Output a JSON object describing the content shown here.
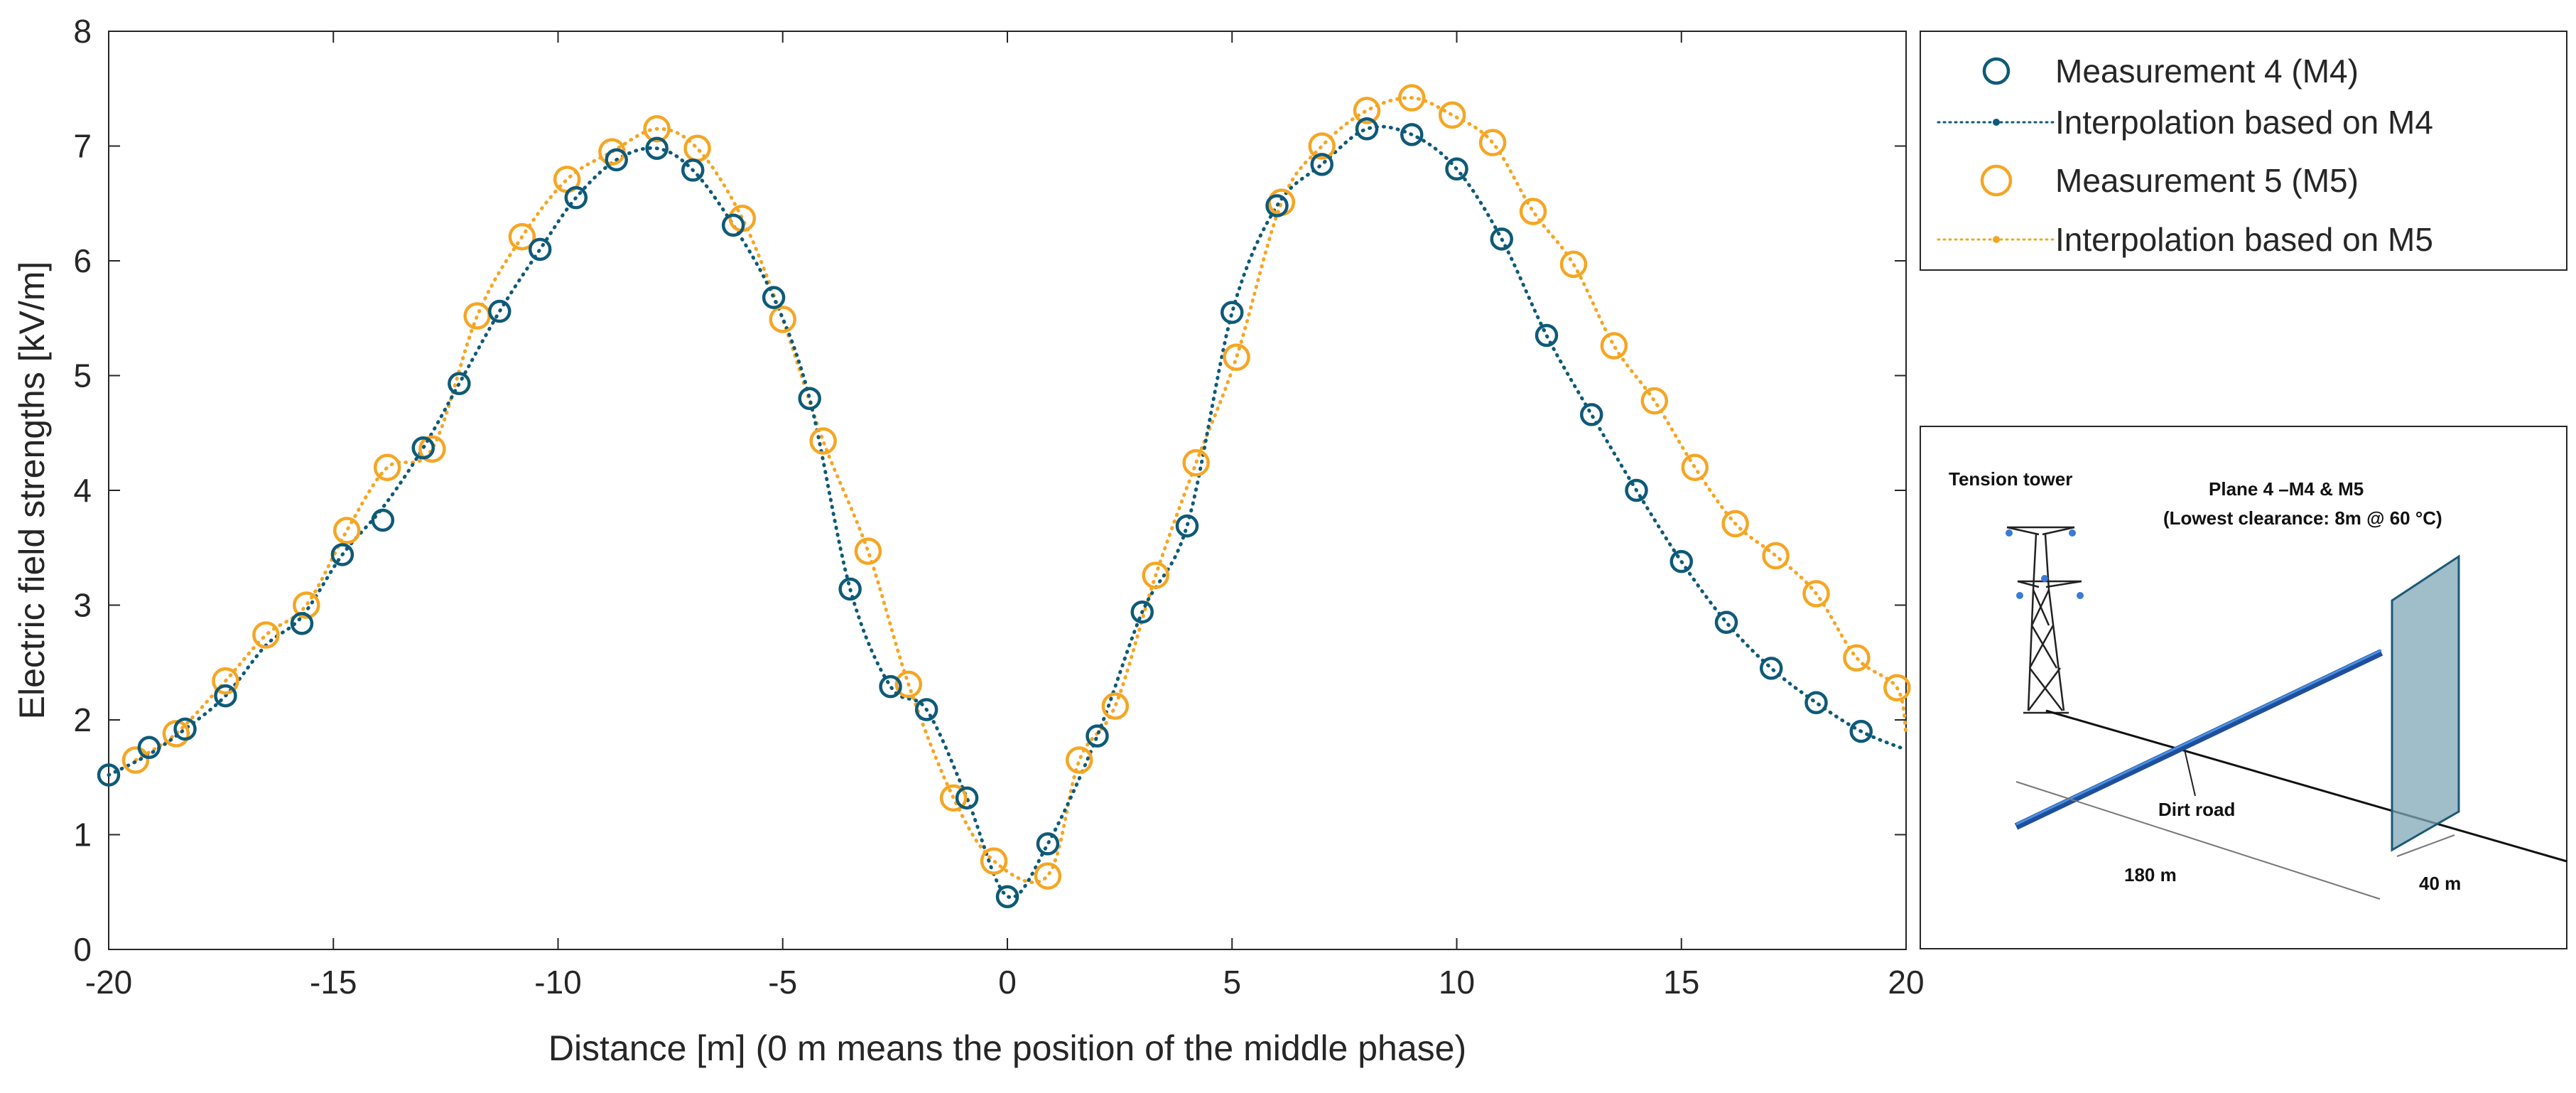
{
  "chart_data": {
    "type": "line",
    "xlabel": "Distance [m] (0 m means the position of the middle phase)",
    "ylabel": "Electric field strengths [kV/m]",
    "xlim": [
      -20,
      20
    ],
    "ylim": [
      0,
      8
    ],
    "xticks": [
      "-20",
      "-15",
      "-10",
      "-5",
      "0",
      "5",
      "10",
      "15",
      "20"
    ],
    "yticks": [
      "0",
      "1",
      "2",
      "3",
      "4",
      "5",
      "6",
      "7",
      "8"
    ],
    "colors": {
      "m4": "#0e5a78",
      "m5": "#f5a623"
    },
    "series": [
      {
        "name": "Measurement 4 (M4)",
        "kind": "markers",
        "color": "#0e5a78",
        "x": [
          -20,
          -19.1,
          -18.3,
          -17.4,
          -15.7,
          -14.8,
          -13.9,
          -13.0,
          -12.2,
          -11.3,
          -10.4,
          -9.6,
          -8.7,
          -7.8,
          -7.0,
          -6.1,
          -5.2,
          -4.4,
          -3.5,
          -2.6,
          -1.8,
          -0.9,
          0,
          0.9,
          2.0,
          3.0,
          4.0,
          5.0,
          6.0,
          7.0,
          8.0,
          9.0,
          10.0,
          11.0,
          12.0,
          13.0,
          14.0,
          15.0,
          16.0,
          17.0,
          18.0,
          19.0
        ],
        "y": [
          1.52,
          1.76,
          1.92,
          2.21,
          2.84,
          3.44,
          3.74,
          4.37,
          4.93,
          5.56,
          6.1,
          6.55,
          6.88,
          6.98,
          6.79,
          6.31,
          5.68,
          4.8,
          3.14,
          2.29,
          2.09,
          1.32,
          0.46,
          0.92,
          1.86,
          2.94,
          3.69,
          5.55,
          6.48,
          6.84,
          7.15,
          7.1,
          6.8,
          6.19,
          5.35,
          4.66,
          4.0,
          3.38,
          2.85,
          2.45,
          2.15,
          1.9
        ]
      },
      {
        "name": "Interpolation based on M4",
        "kind": "dotted-line",
        "color": "#0e5a78",
        "x": [
          -20,
          -19.1,
          -18.3,
          -17.4,
          -16.5,
          -15.7,
          -14.8,
          -13.9,
          -13.0,
          -12.2,
          -11.3,
          -10.4,
          -9.6,
          -8.7,
          -7.8,
          -7.0,
          -6.1,
          -5.2,
          -4.4,
          -3.5,
          -2.6,
          -1.8,
          -0.9,
          0,
          0.9,
          2.0,
          3.0,
          4.0,
          5.0,
          6.0,
          7.0,
          8.0,
          9.0,
          10.0,
          11.0,
          12.0,
          13.0,
          14.0,
          15.0,
          16.0,
          17.0,
          18.0,
          19.0,
          20.0
        ],
        "y": [
          1.52,
          1.7,
          1.92,
          2.21,
          2.65,
          2.9,
          3.44,
          3.85,
          4.37,
          4.93,
          5.56,
          6.1,
          6.55,
          6.88,
          6.98,
          6.79,
          6.31,
          5.68,
          4.8,
          3.14,
          2.29,
          2.09,
          1.32,
          0.46,
          0.92,
          1.86,
          2.94,
          3.69,
          5.55,
          6.48,
          6.84,
          7.15,
          7.1,
          6.8,
          6.19,
          5.35,
          4.66,
          4.0,
          3.38,
          2.85,
          2.45,
          2.15,
          1.9,
          1.74
        ]
      },
      {
        "name": "Measurement 5 (M5)",
        "kind": "markers",
        "color": "#f5a623",
        "x": [
          -19.4,
          -18.5,
          -17.4,
          -16.5,
          -15.6,
          -14.7,
          -13.8,
          -12.8,
          -11.8,
          -10.8,
          -9.8,
          -8.8,
          -7.8,
          -6.9,
          -5.9,
          -5.0,
          -4.1,
          -3.1,
          -2.2,
          -1.2,
          -0.3,
          0.9,
          1.6,
          2.4,
          3.3,
          4.2,
          5.1,
          6.1,
          7.0,
          8.0,
          9.0,
          9.9,
          10.8,
          11.7,
          12.6,
          13.5,
          14.4,
          15.3,
          16.2,
          17.1,
          18.0,
          18.9,
          19.8
        ],
        "y": [
          1.65,
          1.88,
          2.34,
          2.74,
          3.0,
          3.65,
          4.2,
          4.36,
          5.52,
          6.21,
          6.71,
          6.95,
          7.15,
          6.98,
          6.37,
          5.49,
          4.43,
          3.47,
          2.31,
          1.32,
          0.77,
          0.64,
          1.65,
          2.12,
          3.26,
          4.24,
          5.16,
          6.51,
          7.0,
          7.31,
          7.42,
          7.27,
          7.03,
          6.43,
          5.97,
          5.26,
          4.78,
          4.2,
          3.71,
          3.43,
          3.1,
          2.54,
          2.28
        ]
      },
      {
        "name": "Interpolation based on M5",
        "kind": "dotted-line",
        "color": "#f5a623",
        "x": [
          -19.4,
          -18.5,
          -17.4,
          -16.5,
          -15.6,
          -14.7,
          -13.8,
          -12.8,
          -11.8,
          -10.8,
          -9.8,
          -8.8,
          -7.8,
          -6.9,
          -5.9,
          -5.0,
          -4.1,
          -3.1,
          -2.2,
          -1.2,
          -0.3,
          0.9,
          1.6,
          2.4,
          3.3,
          4.2,
          5.1,
          6.1,
          7.0,
          8.0,
          9.0,
          9.9,
          10.8,
          11.7,
          12.6,
          13.5,
          14.4,
          15.3,
          16.2,
          17.1,
          18.0,
          18.9,
          19.8,
          20.0
        ],
        "y": [
          1.65,
          1.88,
          2.34,
          2.74,
          3.0,
          3.65,
          4.2,
          4.36,
          5.52,
          6.21,
          6.71,
          6.95,
          7.15,
          6.98,
          6.37,
          5.49,
          4.43,
          3.47,
          2.31,
          1.32,
          0.77,
          0.64,
          1.65,
          2.12,
          3.26,
          4.24,
          5.16,
          6.51,
          7.0,
          7.31,
          7.42,
          7.27,
          7.03,
          6.43,
          5.97,
          5.26,
          4.78,
          4.2,
          3.71,
          3.43,
          3.1,
          2.54,
          2.28,
          1.88
        ]
      }
    ],
    "legend": {
      "placement": "outside-top-right",
      "entries": [
        "Measurement 4 (M4)",
        "Interpolation based on M4",
        "Measurement 5 (M5)",
        "Interpolation based on M5"
      ]
    },
    "inset": {
      "title": "Tension tower",
      "plane": "Plane 4 –M4 & M5",
      "clearance": "(Lowest clearance: 8m @ 60 °C)",
      "road": "Dirt road",
      "dist1": "180 m",
      "dist2": "40 m"
    }
  }
}
